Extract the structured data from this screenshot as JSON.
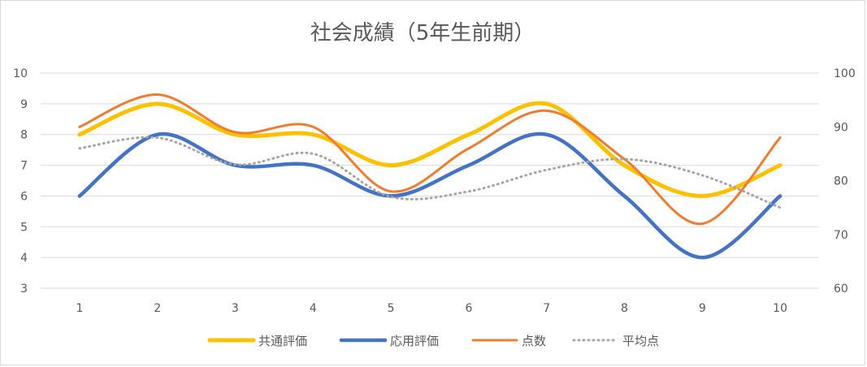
{
  "chart_data": {
    "type": "line",
    "title": "社会成績（5年生前期）",
    "categories": [
      "1",
      "2",
      "3",
      "4",
      "5",
      "6",
      "7",
      "8",
      "9",
      "10"
    ],
    "y_left": {
      "min": 3,
      "max": 10,
      "ticks": [
        "3",
        "4",
        "5",
        "6",
        "7",
        "8",
        "9",
        "10"
      ]
    },
    "y_right": {
      "min": 60,
      "max": 100,
      "ticks": [
        "60",
        "70",
        "80",
        "90",
        "100"
      ]
    },
    "grid": true,
    "legend_position": "bottom",
    "smooth": true,
    "series": [
      {
        "name": "共通評価",
        "axis": "left",
        "color": "#FFC000",
        "dash": "solid",
        "values": [
          8,
          9,
          8,
          8,
          7,
          8,
          9,
          7,
          6,
          7
        ]
      },
      {
        "name": "応用評価",
        "axis": "left",
        "color": "#4472C4",
        "dash": "solid",
        "values": [
          6,
          8,
          7,
          7,
          6,
          7,
          8,
          6,
          4,
          6
        ]
      },
      {
        "name": "点数",
        "axis": "right",
        "color": "#ED7D31",
        "dash": "solid",
        "values": [
          90,
          96,
          89,
          90,
          78,
          86,
          93,
          84,
          72,
          88
        ]
      },
      {
        "name": "平均点",
        "axis": "right",
        "color": "#A5A5A5",
        "dash": "dotted",
        "values": [
          86,
          88,
          83,
          85,
          77,
          78,
          82,
          84,
          81,
          75
        ]
      }
    ]
  }
}
